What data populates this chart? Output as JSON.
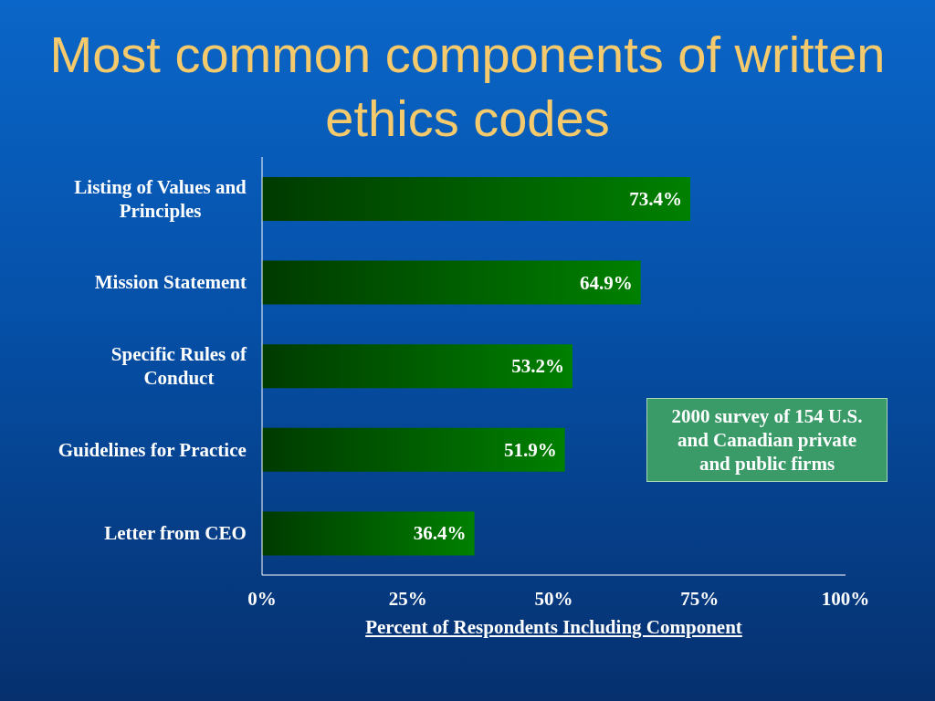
{
  "chart_data": {
    "type": "bar",
    "orientation": "horizontal",
    "title": "Most common components of written ethics codes",
    "xlabel": "Percent of Respondents Including Component",
    "categories": [
      "Listing of Values and Principles",
      "Mission Statement",
      "Specific Rules of Conduct",
      "Guidelines for Practice",
      "Letter from CEO"
    ],
    "values": [
      73.4,
      64.9,
      53.2,
      51.9,
      36.4
    ],
    "value_labels": [
      "73.4%",
      "64.9%",
      "53.2%",
      "51.9%",
      "36.4%"
    ],
    "color": "#008000",
    "xlim": [
      0,
      100
    ],
    "xticks": [
      {
        "value": 0,
        "label": "0%"
      },
      {
        "value": 25,
        "label": "25%"
      },
      {
        "value": 50,
        "label": "50%"
      },
      {
        "value": 75,
        "label": "75%"
      },
      {
        "value": 100,
        "label": "100%"
      }
    ],
    "annotations": [
      "2000 survey of 154 U.S. and Canadian private and public firms"
    ]
  }
}
